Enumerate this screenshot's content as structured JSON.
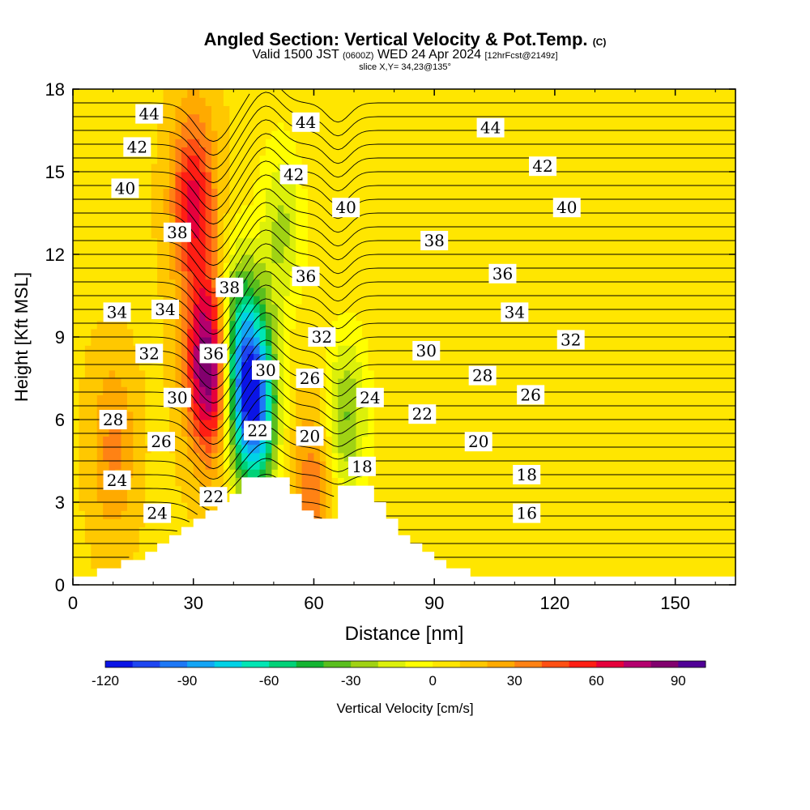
{
  "header": {
    "title_main": "Angled Section: Vertical Velocity & Pot.Temp.",
    "title_suffix": "(C)",
    "valid_prefix": "Valid 1500 JST",
    "valid_small": "(0600Z)",
    "valid_mid": "WED 24 Apr 2024",
    "valid_fcst": "[12hrFcst@2149z]",
    "slice": "slice X,Y= 34,23@135°"
  },
  "chart_data": {
    "type": "heatmap",
    "xlabel": "Distance [nm]",
    "ylabel": "Height [Kft MSL]",
    "xlim": [
      0,
      165
    ],
    "ylim": [
      0,
      18
    ],
    "x_ticks": [
      0,
      30,
      60,
      90,
      120,
      150
    ],
    "y_ticks": [
      0,
      3,
      6,
      9,
      12,
      15,
      18
    ],
    "colorbar": {
      "label": "Vertical Velocity [cm/s]",
      "ticks": [
        -120,
        -90,
        -60,
        -30,
        0,
        30,
        60,
        90
      ],
      "range": [
        -120,
        100
      ],
      "colors": [
        "#0a14e6",
        "#1e46f0",
        "#1e78f5",
        "#14a5f5",
        "#00d2e6",
        "#00e6b4",
        "#00d278",
        "#14b432",
        "#5abe1e",
        "#a0d214",
        "#dcf00a",
        "#ffff00",
        "#ffe600",
        "#ffc800",
        "#ffaa00",
        "#ff8214",
        "#ff5014",
        "#ff1e14",
        "#e6003c",
        "#b4006e",
        "#82006e",
        "#500096"
      ]
    },
    "terrain_profile": [
      [
        0,
        0.3
      ],
      [
        10,
        0.6
      ],
      [
        14,
        0.9
      ],
      [
        17,
        1.2
      ],
      [
        20,
        1.4
      ],
      [
        23,
        1.6
      ],
      [
        26,
        1.9
      ],
      [
        29,
        2.2
      ],
      [
        32,
        2.5
      ],
      [
        35,
        2.8
      ],
      [
        38,
        3.2
      ],
      [
        41,
        3.6
      ],
      [
        43,
        3.9
      ],
      [
        50,
        3.9
      ],
      [
        53,
        3.5
      ],
      [
        56,
        3.0
      ],
      [
        58,
        2.6
      ],
      [
        61,
        2.3
      ],
      [
        64,
        2.6
      ],
      [
        66,
        3.6
      ],
      [
        72,
        3.6
      ],
      [
        75,
        2.9
      ],
      [
        78,
        2.3
      ],
      [
        82,
        1.7
      ],
      [
        86,
        1.2
      ],
      [
        90,
        0.8
      ],
      [
        95,
        0.6
      ],
      [
        100,
        0.4
      ],
      [
        165,
        0.3
      ]
    ],
    "vertical_velocity_features": [
      {
        "x": 34,
        "z": 8.0,
        "value": 90
      },
      {
        "x": 30,
        "z": 14.0,
        "value": 55
      },
      {
        "x": 45,
        "z": 6.5,
        "value": -115
      },
      {
        "x": 41,
        "z": 9.0,
        "value": -60
      },
      {
        "x": 52,
        "z": 13.0,
        "value": -30
      },
      {
        "x": 68,
        "z": 6.0,
        "value": -40
      },
      {
        "x": 60,
        "z": 3.5,
        "value": 30
      },
      {
        "x": 10,
        "z": 5.0,
        "value": 25
      }
    ],
    "theta_contours": [
      {
        "value": 16,
        "label": {
          "x": 113,
          "z": 2.6
        }
      },
      {
        "value": 18,
        "label": {
          "x": 113,
          "z": 4.0
        },
        "label2": {
          "x": 72,
          "z": 4.3
        }
      },
      {
        "value": 20,
        "label": {
          "x": 101,
          "z": 5.2
        },
        "label2": {
          "x": 59,
          "z": 5.4
        }
      },
      {
        "value": 22,
        "label": {
          "x": 87,
          "z": 6.2
        },
        "label2": {
          "x": 46,
          "z": 5.6
        },
        "label3": {
          "x": 35,
          "z": 3.2
        }
      },
      {
        "value": 24,
        "label": {
          "x": 74,
          "z": 6.8
        },
        "label2": {
          "x": 11,
          "z": 3.8
        },
        "label3": {
          "x": 21,
          "z": 2.6
        }
      },
      {
        "value": 26,
        "label": {
          "x": 59,
          "z": 7.5
        },
        "label2": {
          "x": 22,
          "z": 5.2
        },
        "label3": {
          "x": 114,
          "z": 6.9
        }
      },
      {
        "value": 28,
        "label": {
          "x": 102,
          "z": 7.6
        },
        "label2": {
          "x": 10,
          "z": 6.0
        }
      },
      {
        "value": 30,
        "label": {
          "x": 88,
          "z": 8.5
        },
        "label2": {
          "x": 26,
          "z": 6.8
        },
        "label3": {
          "x": 48,
          "z": 7.8
        }
      },
      {
        "value": 32,
        "label": {
          "x": 124,
          "z": 8.9
        },
        "label2": {
          "x": 62,
          "z": 9.0
        },
        "label3": {
          "x": 19,
          "z": 8.4
        }
      },
      {
        "value": 34,
        "label": {
          "x": 110,
          "z": 9.9
        },
        "label2": {
          "x": 11,
          "z": 9.9
        },
        "label3": {
          "x": 23,
          "z": 10.0
        }
      },
      {
        "value": 36,
        "label": {
          "x": 107,
          "z": 11.3
        },
        "label2": {
          "x": 58,
          "z": 11.2
        },
        "label3": {
          "x": 35,
          "z": 8.4
        }
      },
      {
        "value": 38,
        "label": {
          "x": 90,
          "z": 12.5
        },
        "label2": {
          "x": 26,
          "z": 12.8
        },
        "label3": {
          "x": 39,
          "z": 10.8
        }
      },
      {
        "value": 40,
        "label": {
          "x": 123,
          "z": 13.7
        },
        "label2": {
          "x": 68,
          "z": 13.7
        },
        "label3": {
          "x": 13,
          "z": 14.4
        }
      },
      {
        "value": 42,
        "label": {
          "x": 117,
          "z": 15.2
        },
        "label2": {
          "x": 55,
          "z": 14.9
        },
        "label3": {
          "x": 16,
          "z": 15.9
        }
      },
      {
        "value": 44,
        "label": {
          "x": 104,
          "z": 16.6
        },
        "label2": {
          "x": 58,
          "z": 16.8
        },
        "label3": {
          "x": 19,
          "z": 17.1
        }
      }
    ]
  }
}
